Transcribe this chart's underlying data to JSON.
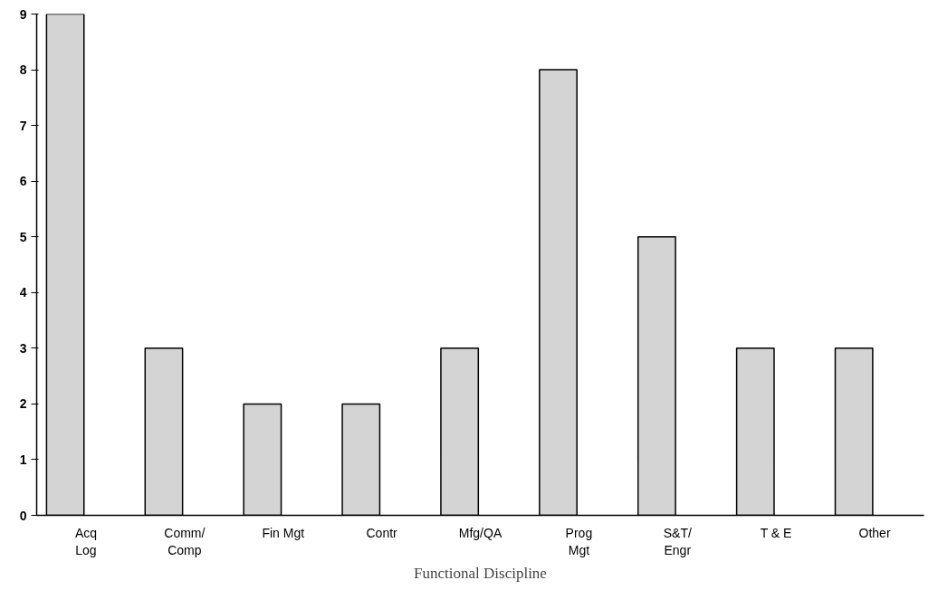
{
  "chart_data": {
    "type": "bar",
    "xlabel": "Functional Discipline",
    "categories": [
      "Acq\nLog",
      "Comm/\nComp",
      "Fin Mgt",
      "Contr",
      "Mfg/QA",
      "Prog\nMgt",
      "S&T/\nEngr",
      "T & E",
      "Other"
    ],
    "values": [
      9,
      3,
      2,
      2,
      3,
      8,
      5,
      3,
      3
    ],
    "color": "#d4d4d4",
    "ylim": [
      0,
      9
    ],
    "yticks": [
      0,
      1,
      2,
      3,
      4,
      5,
      6,
      7,
      8,
      9
    ],
    "grid": false
  }
}
